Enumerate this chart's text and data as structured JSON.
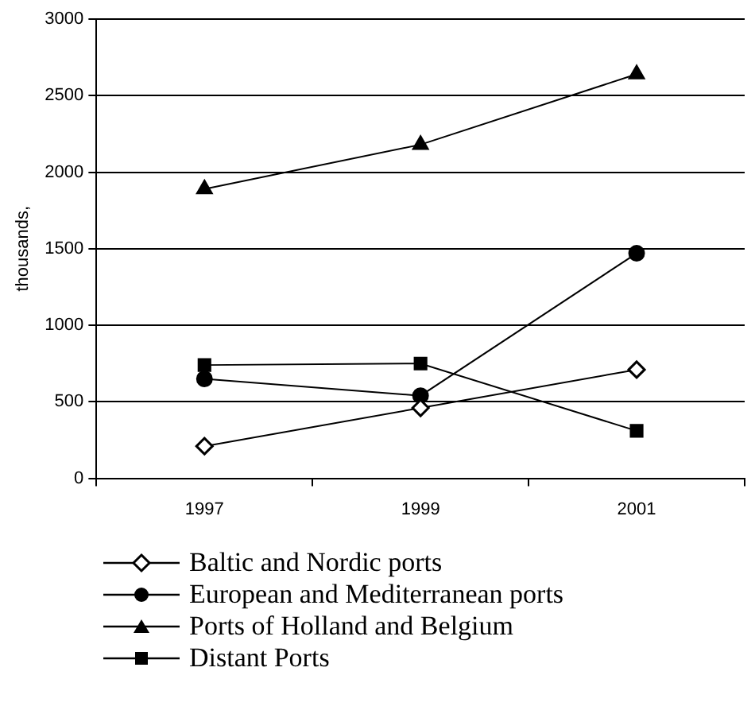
{
  "chart_data": {
    "type": "line",
    "ylabel": "thousands,",
    "categories": [
      "1997",
      "1999",
      "2001"
    ],
    "series": [
      {
        "name": "Baltic and Nordic ports",
        "color": "#000000",
        "marker": "diamond",
        "values": [
          210,
          460,
          710
        ]
      },
      {
        "name": "European and Mediterranean ports",
        "color": "#000000",
        "marker": "circle",
        "values": [
          650,
          540,
          1470
        ]
      },
      {
        "name": "Ports of Holland and Belgium",
        "color": "#000000",
        "marker": "triangle",
        "values": [
          1890,
          2180,
          2640
        ]
      },
      {
        "name": "Distant Ports",
        "color": "#000000",
        "marker": "square",
        "values": [
          740,
          750,
          310
        ]
      }
    ],
    "ylim": [
      0,
      3000
    ],
    "yticks": [
      0,
      500,
      1000,
      1500,
      2000,
      2500,
      3000
    ],
    "grid": "y",
    "legend": "bottom"
  }
}
